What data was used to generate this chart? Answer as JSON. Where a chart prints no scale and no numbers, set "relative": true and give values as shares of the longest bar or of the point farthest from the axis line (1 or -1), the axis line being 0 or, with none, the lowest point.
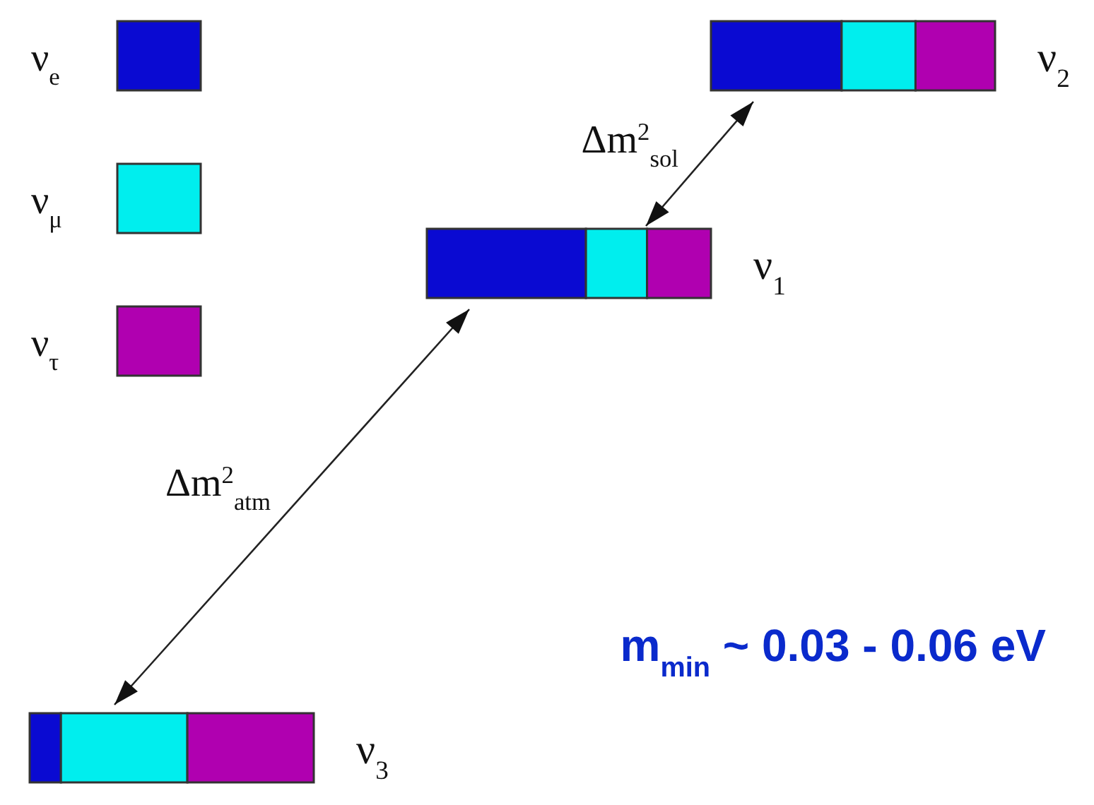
{
  "chart_data": [
    {
      "type": "bar",
      "orientation": "horizontal",
      "stacked": true,
      "relative": true,
      "categories": [
        "ν$_{2}$"
      ],
      "legend": "left",
      "series": [
        {
          "name": "ν$_{e}$",
          "color": "#0a0ad2",
          "values": [
            0.46
          ]
        },
        {
          "name": "ν$_{μ}$",
          "color": "#00eeee",
          "values": [
            0.26
          ]
        },
        {
          "name": "ν$_{τ}$",
          "color": "#b000b0",
          "values": [
            0.28
          ]
        }
      ],
      "annotations": [
        "Δm$^{2}$$_{sol}$"
      ]
    },
    {
      "type": "bar",
      "orientation": "horizontal",
      "stacked": true,
      "relative": true,
      "categories": [
        "ν$_{1}$"
      ],
      "series": [
        {
          "color": "#0a0ad2",
          "values": [
            0.56
          ]
        },
        {
          "color": "#00eeee",
          "values": [
            0.215
          ]
        },
        {
          "color": "#b000b0",
          "values": [
            0.225
          ]
        }
      ],
      "annotations": [
        "Δm$^{2}$$_{atm}$"
      ]
    },
    {
      "type": "bar",
      "orientation": "horizontal",
      "stacked": true,
      "relative": true,
      "categories": [
        "ν$_{3}$"
      ],
      "series": [
        {
          "color": "#0a0ad2",
          "values": [
            0.11
          ]
        },
        {
          "color": "#00eeee",
          "values": [
            0.445
          ]
        },
        {
          "color": "#b000b0",
          "values": [
            0.445
          ]
        }
      ],
      "annotations": [
        "m$_{min}$ ~ 0.03 - 0.06 eV"
      ]
    }
  ]
}
